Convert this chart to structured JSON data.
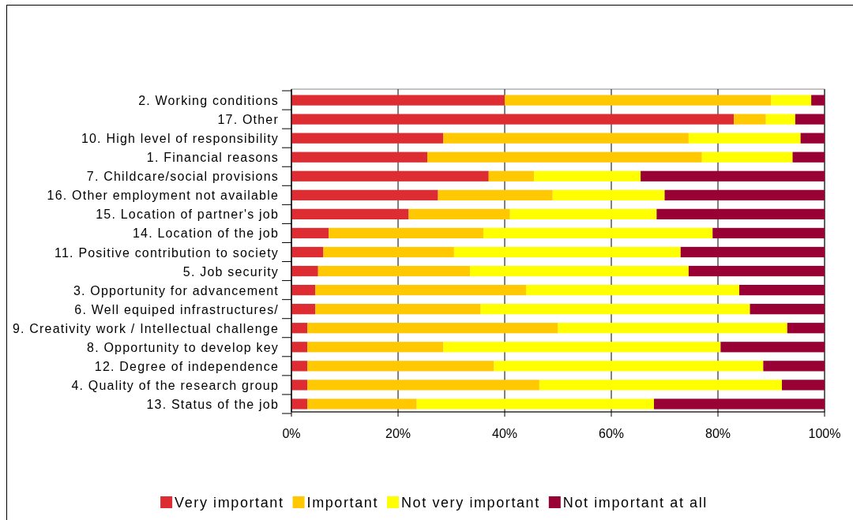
{
  "chart_data": {
    "type": "bar",
    "orientation": "horizontal",
    "stacked": true,
    "categories": [
      "2. Working conditions",
      "17. Other",
      "10. High level of responsibility",
      "1. Financial reasons",
      "7. Childcare/social provisions",
      "16. Other employment not available",
      "15. Location of partner's job",
      "14. Location of the job",
      "11. Positive contribution to society",
      "5. Job security",
      "3. Opportunity for advancement",
      "6. Well equiped infrastructures/",
      "9. Creativity work / Intellectual challenge",
      "8. Opportunity to develop key",
      "12. Degree of independence",
      "4. Quality of the research group",
      "13. Status of the job"
    ],
    "series": [
      {
        "name": "Very important",
        "color": "#dd2d33",
        "values": [
          40,
          83,
          28.5,
          25.5,
          37,
          27.5,
          22,
          7,
          6,
          5,
          4.5,
          4.5,
          3,
          3,
          3,
          3,
          3
        ]
      },
      {
        "name": "Important",
        "color": "#ffc800",
        "values": [
          50,
          6,
          46,
          51.5,
          8.5,
          21.5,
          19,
          29,
          24.5,
          28.5,
          39.5,
          31,
          47,
          25.5,
          35,
          43.5,
          20.5
        ]
      },
      {
        "name": "Not very important",
        "color": "#ffff00",
        "values": [
          7.5,
          5.5,
          21,
          17,
          20,
          21,
          27.5,
          43,
          42.5,
          41,
          40,
          50.5,
          43,
          52,
          50.5,
          45.5,
          44.5
        ]
      },
      {
        "name": "Not important at all",
        "color": "#990033",
        "values": [
          2.5,
          5.5,
          4.5,
          6,
          34.5,
          30,
          31.5,
          21,
          27,
          25.5,
          16,
          14,
          7,
          19.5,
          11.5,
          8,
          32
        ]
      }
    ],
    "xlim": [
      0,
      100
    ],
    "xticks": [
      {
        "value": 0,
        "label": "0%"
      },
      {
        "value": 20,
        "label": "20%"
      },
      {
        "value": 40,
        "label": "40%"
      },
      {
        "value": 60,
        "label": "60%"
      },
      {
        "value": 80,
        "label": "80%"
      },
      {
        "value": 100,
        "label": "100%"
      }
    ],
    "grid": "x",
    "legend": "bottom"
  }
}
